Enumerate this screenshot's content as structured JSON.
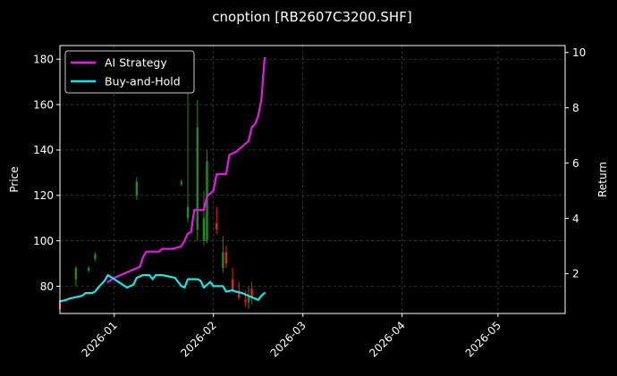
{
  "chart_data": {
    "type": "line",
    "title": "cnoption [RB2607C3200.SHF]",
    "xlabel": "",
    "ylabel": "Price",
    "y2label": "Return",
    "x_range": [
      "2025-12-15",
      "2026-05-22"
    ],
    "ylim": [
      68,
      186
    ],
    "y2lim": [
      0.56,
      10.25
    ],
    "y_ticks": [
      80,
      100,
      120,
      140,
      160,
      180
    ],
    "y2_ticks": [
      2,
      4,
      6,
      8,
      10
    ],
    "x_ticks": [
      "2026-01",
      "2026-02",
      "2026-03",
      "2026-04",
      "2026-05"
    ],
    "grid": true,
    "legend_position": "top-left",
    "series": [
      {
        "name": "AI Strategy",
        "color": "#e619e6",
        "axis": "y2",
        "points": [
          [
            "2025-12-30",
            1.7
          ],
          [
            "2026-01-01",
            1.85
          ],
          [
            "2026-01-03",
            1.95
          ],
          [
            "2026-01-06",
            2.1
          ],
          [
            "2026-01-08",
            2.2
          ],
          [
            "2026-01-09",
            2.25
          ],
          [
            "2026-01-10",
            2.6
          ],
          [
            "2026-01-11",
            2.8
          ],
          [
            "2026-01-13",
            2.8
          ],
          [
            "2026-01-15",
            2.8
          ],
          [
            "2026-01-16",
            2.9
          ],
          [
            "2026-01-19",
            2.9
          ],
          [
            "2026-01-21",
            2.95
          ],
          [
            "2026-01-22",
            3.0
          ],
          [
            "2026-01-23",
            3.2
          ],
          [
            "2026-01-24",
            3.45
          ],
          [
            "2026-01-25",
            3.5
          ],
          [
            "2026-01-26",
            4.3
          ],
          [
            "2026-01-29",
            4.3
          ],
          [
            "2026-01-30",
            4.8
          ],
          [
            "2026-01-31",
            4.9
          ],
          [
            "2026-02-01",
            5.0
          ],
          [
            "2026-02-02",
            5.6
          ],
          [
            "2026-02-05",
            5.6
          ],
          [
            "2026-02-06",
            6.3
          ],
          [
            "2026-02-07",
            6.35
          ],
          [
            "2026-02-08",
            6.4
          ],
          [
            "2026-02-11",
            6.7
          ],
          [
            "2026-02-12",
            6.8
          ],
          [
            "2026-02-13",
            7.3
          ],
          [
            "2026-02-14",
            7.4
          ],
          [
            "2026-02-15",
            7.7
          ],
          [
            "2026-02-16",
            8.3
          ],
          [
            "2026-02-17",
            9.8
          ]
        ]
      },
      {
        "name": "Buy-and-Hold",
        "color": "#19e6e6",
        "axis": "y2",
        "points": [
          [
            "2025-12-15",
            1.0
          ],
          [
            "2025-12-17",
            1.05
          ],
          [
            "2025-12-18",
            1.1
          ],
          [
            "2025-12-20",
            1.15
          ],
          [
            "2025-12-22",
            1.2
          ],
          [
            "2025-12-23",
            1.3
          ],
          [
            "2025-12-25",
            1.3
          ],
          [
            "2025-12-26",
            1.35
          ],
          [
            "2025-12-27",
            1.5
          ],
          [
            "2025-12-29",
            1.75
          ],
          [
            "2025-12-30",
            1.95
          ],
          [
            "2026-01-01",
            1.8
          ],
          [
            "2026-01-03",
            1.65
          ],
          [
            "2026-01-05",
            1.5
          ],
          [
            "2026-01-06",
            1.55
          ],
          [
            "2026-01-07",
            1.6
          ],
          [
            "2026-01-08",
            1.85
          ],
          [
            "2026-01-10",
            1.95
          ],
          [
            "2026-01-12",
            1.95
          ],
          [
            "2026-01-13",
            1.8
          ],
          [
            "2026-01-14",
            1.95
          ],
          [
            "2026-01-16",
            1.95
          ],
          [
            "2026-01-18",
            1.9
          ],
          [
            "2026-01-20",
            1.85
          ],
          [
            "2026-01-21",
            1.7
          ],
          [
            "2026-01-22",
            1.55
          ],
          [
            "2026-01-23",
            1.5
          ],
          [
            "2026-01-24",
            1.8
          ],
          [
            "2026-01-27",
            1.8
          ],
          [
            "2026-01-28",
            1.75
          ],
          [
            "2026-01-29",
            1.5
          ],
          [
            "2026-01-31",
            1.7
          ],
          [
            "2026-02-01",
            1.55
          ],
          [
            "2026-02-03",
            1.55
          ],
          [
            "2026-02-04",
            1.55
          ],
          [
            "2026-02-05",
            1.35
          ],
          [
            "2026-02-07",
            1.4
          ],
          [
            "2026-02-08",
            1.35
          ],
          [
            "2026-02-10",
            1.3
          ],
          [
            "2026-02-12",
            1.2
          ],
          [
            "2026-02-14",
            1.1
          ],
          [
            "2026-02-15",
            1.05
          ],
          [
            "2026-02-16",
            1.2
          ],
          [
            "2026-02-17",
            1.3
          ]
        ]
      }
    ],
    "candles": {
      "axis": "y",
      "up_color": "#1e8c1e",
      "down_color": "#e61e1e",
      "points": [
        [
          "2025-12-15",
          73,
          70,
          74,
          69
        ],
        [
          "2025-12-20",
          83,
          88,
          89,
          80
        ],
        [
          "2025-12-24",
          87,
          88,
          89,
          86
        ],
        [
          "2025-12-26",
          92,
          94,
          95,
          91
        ],
        [
          "2026-01-08",
          120,
          126,
          128,
          118
        ],
        [
          "2026-01-22",
          125,
          126,
          127,
          124
        ],
        [
          "2026-01-24",
          110,
          115,
          170,
          108
        ],
        [
          "2026-01-27",
          105,
          150,
          162,
          100
        ],
        [
          "2026-01-29",
          100,
          110,
          122,
          98
        ],
        [
          "2026-01-30",
          100,
          135,
          140,
          99
        ],
        [
          "2026-02-02",
          108,
          105,
          115,
          103
        ],
        [
          "2026-02-04",
          88,
          95,
          102,
          86
        ],
        [
          "2026-02-05",
          95,
          90,
          98,
          88
        ],
        [
          "2026-02-07",
          83,
          78,
          88,
          77
        ],
        [
          "2026-02-09",
          78,
          75,
          82,
          74
        ],
        [
          "2026-02-11",
          74,
          73,
          78,
          71
        ],
        [
          "2026-02-12",
          73,
          76,
          80,
          70
        ],
        [
          "2026-02-13",
          79,
          75,
          82,
          72
        ]
      ]
    }
  }
}
